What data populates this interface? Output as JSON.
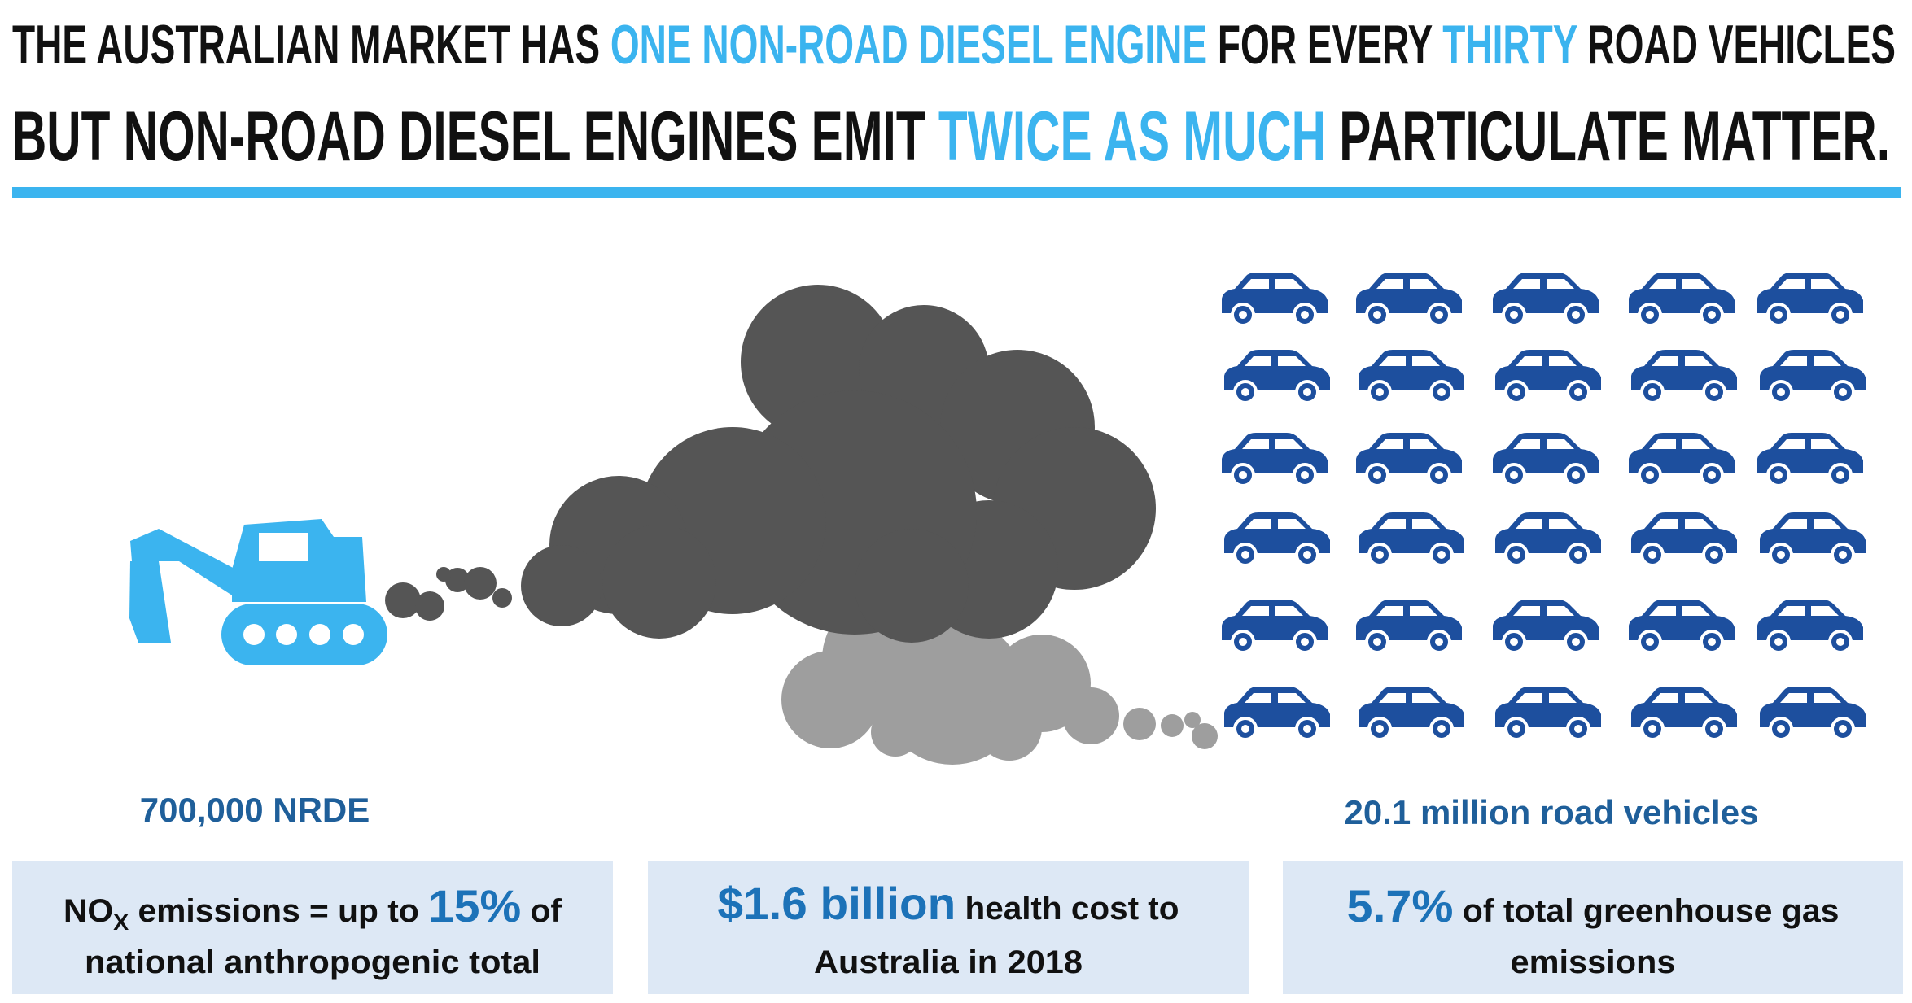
{
  "header": {
    "line1": [
      "THE AUSTRALIAN MARKET HAS ",
      "ONE NON-ROAD DIESEL ENGINE",
      " FOR EVERY ",
      "THIRTY",
      " ROAD VEHICLES"
    ],
    "line2": [
      "BUT NON-ROAD DIESEL ENGINES EMIT ",
      "TWICE AS MUCH",
      " PARTICULATE MATTER."
    ]
  },
  "labels": {
    "left": "700,000 NRDE",
    "right": "20.1 million road vehicles"
  },
  "stats": [
    {
      "line1": [
        "NO",
        "X",
        " emissions = up to ",
        "15%",
        " of"
      ],
      "line2": "national anthropogenic total"
    },
    {
      "line1": [
        "$1.6 billion",
        " health cost to"
      ],
      "line2": "Australia in 2018"
    },
    {
      "line1": [
        "5.7%",
        " of total greenhouse gas"
      ],
      "line2": "emissions"
    }
  ]
}
